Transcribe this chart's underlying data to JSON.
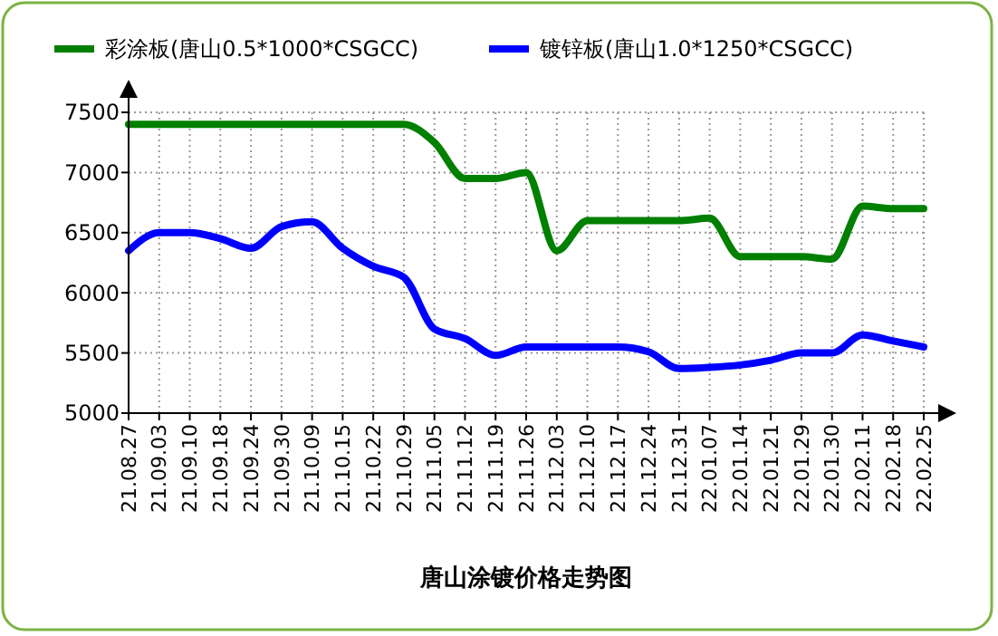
{
  "chart_data": {
    "type": "line",
    "title": "唐山涂镀价格走势图",
    "categories": [
      "21.08.27",
      "21.09.03",
      "21.09.10",
      "21.09.18",
      "21.09.24",
      "21.09.30",
      "21.10.09",
      "21.10.15",
      "21.10.22",
      "21.10.29",
      "21.11.05",
      "21.11.12",
      "21.11.19",
      "21.11.26",
      "21.12.03",
      "21.12.10",
      "21.12.17",
      "21.12.24",
      "21.12.31",
      "22.01.07",
      "22.01.14",
      "22.01.21",
      "22.01.29",
      "22.01.30",
      "22.02.11",
      "22.02.18",
      "22.02.25"
    ],
    "series": [
      {
        "name": "彩涂板(唐山0.5*1000*CSGCC)",
        "color": "#008000",
        "values": [
          7400,
          7400,
          7400,
          7400,
          7400,
          7400,
          7400,
          7400,
          7400,
          7400,
          7250,
          6950,
          6950,
          7000,
          6350,
          6600,
          6600,
          6600,
          6600,
          6620,
          6300,
          6300,
          6300,
          6280,
          6720,
          6700,
          6700
        ]
      },
      {
        "name": "镀锌板(唐山1.0*1250*CSGCC)",
        "color": "#0000ff",
        "values": [
          6350,
          6500,
          6500,
          6450,
          6370,
          6550,
          6590,
          6370,
          6220,
          6130,
          5700,
          5620,
          5480,
          5550,
          5550,
          5550,
          5550,
          5510,
          5370,
          5380,
          5400,
          5440,
          5500,
          5500,
          5650,
          5600,
          5550
        ]
      }
    ],
    "ylim": [
      5000,
      7500
    ],
    "yticks": [
      5000,
      5500,
      6000,
      6500,
      7000,
      7500
    ],
    "grid": true,
    "legend": "top",
    "marker": "none",
    "line_style": "solid"
  }
}
